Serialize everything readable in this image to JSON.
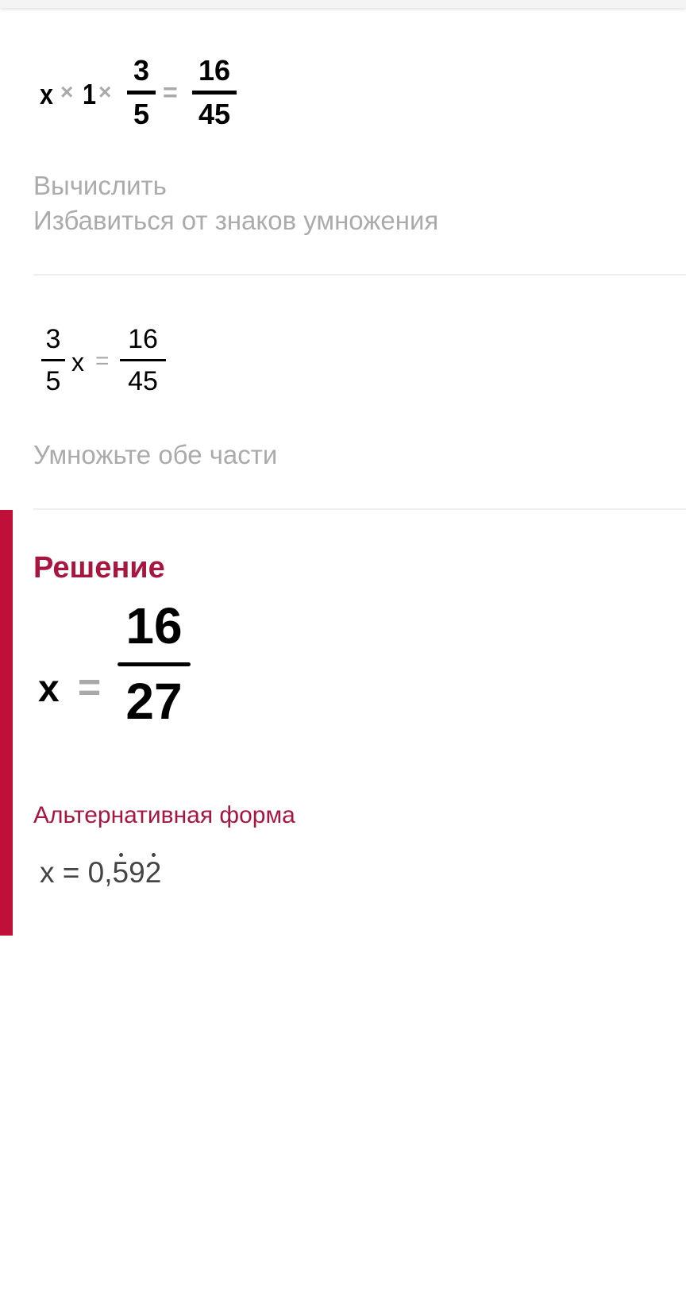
{
  "colors": {
    "accent": "#c0103a",
    "title": "#a8163f",
    "muted": "#ababab"
  },
  "step1": {
    "expression": {
      "var": "x",
      "op1": "×",
      "one": "1",
      "op2": "×",
      "num": "3",
      "den": "5",
      "eq": "=",
      "rnum": "16",
      "rden": "45"
    },
    "hints": [
      "Вычислить",
      "Избавиться от знаков умножения"
    ]
  },
  "step2": {
    "expression": {
      "num": "3",
      "den": "5",
      "var": "x",
      "eq": "=",
      "rnum": "16",
      "rden": "45"
    },
    "hints": [
      "Умножьте обе части"
    ]
  },
  "solution": {
    "title": "Решение",
    "result": {
      "var": "x",
      "eq": "=",
      "num": "16",
      "den": "27"
    },
    "alt_title": "Альтернативная форма",
    "alt_prefix": "x = 0,",
    "alt_digits": [
      "5",
      "9",
      "2"
    ],
    "repeating_note_digits": [
      "5",
      "2"
    ]
  }
}
